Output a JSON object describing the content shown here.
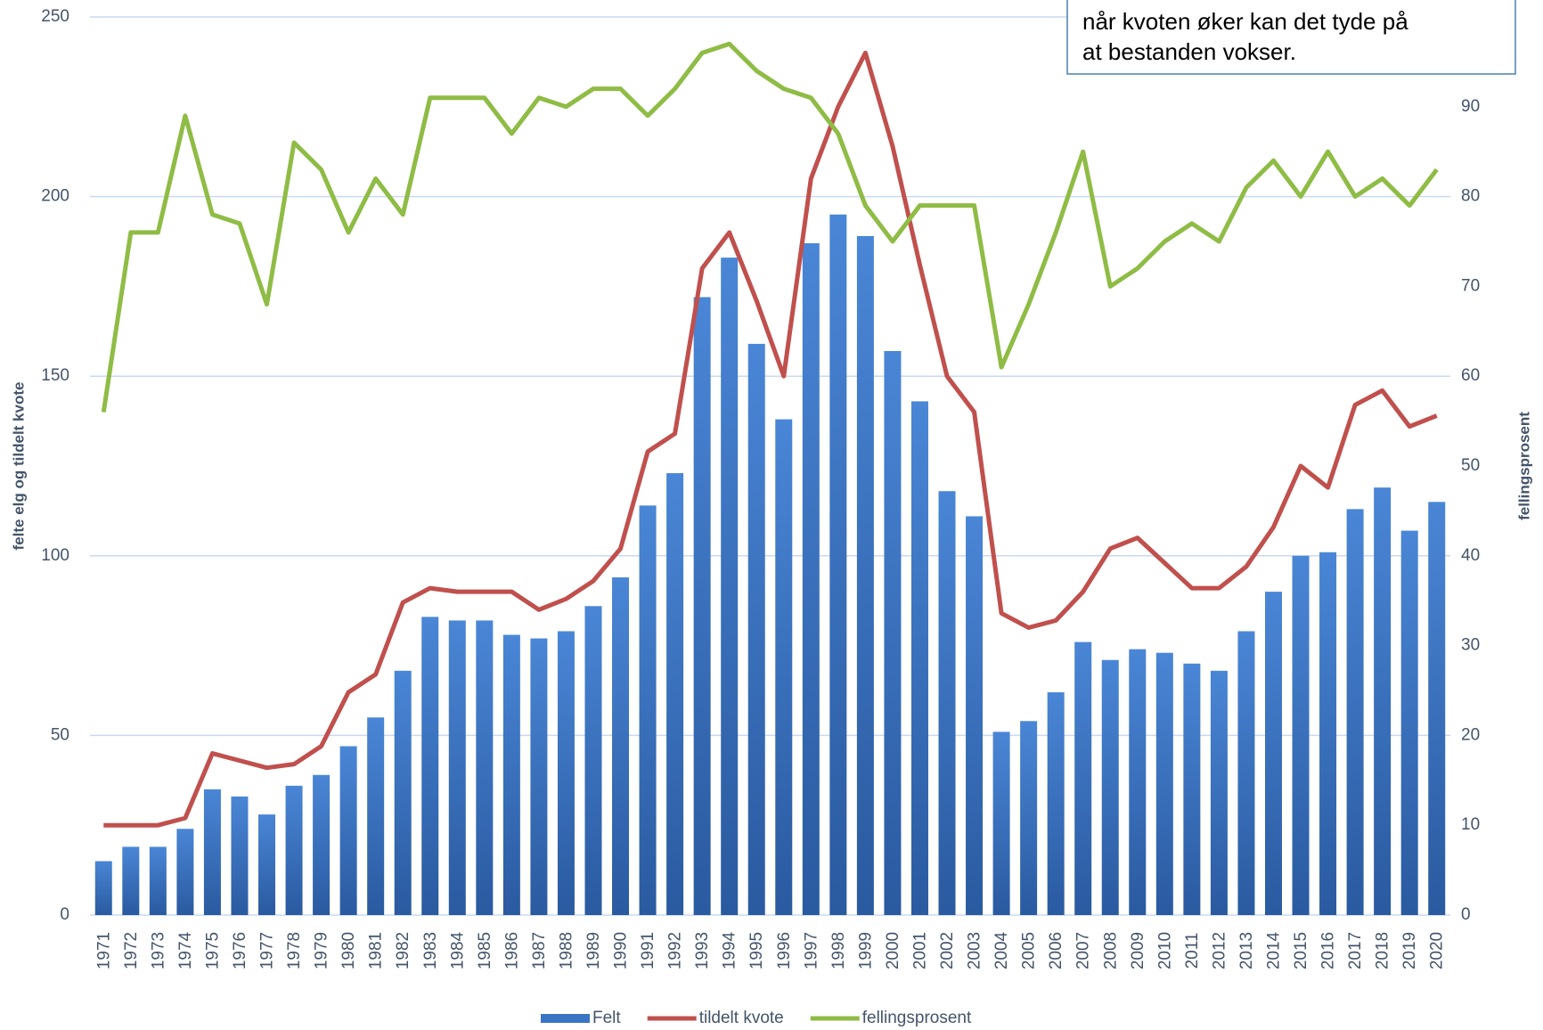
{
  "chart_data": {
    "type": "bar",
    "categories": [
      "1971",
      "1972",
      "1973",
      "1974",
      "1975",
      "1976",
      "1977",
      "1978",
      "1979",
      "1980",
      "1981",
      "1982",
      "1983",
      "1984",
      "1985",
      "1986",
      "1987",
      "1988",
      "1989",
      "1990",
      "1991",
      "1992",
      "1993",
      "1994",
      "1995",
      "1996",
      "1997",
      "1998",
      "1999",
      "2000",
      "2001",
      "2002",
      "2003",
      "2004",
      "2005",
      "2006",
      "2007",
      "2008",
      "2009",
      "2010",
      "2011",
      "2012",
      "2013",
      "2014",
      "2015",
      "2016",
      "2017",
      "2018",
      "2019",
      "2020"
    ],
    "series": [
      {
        "name": "Felt",
        "type": "bar",
        "color": "#3a75c4",
        "values": [
          15,
          19,
          19,
          24,
          35,
          33,
          28,
          36,
          39,
          47,
          55,
          68,
          83,
          82,
          82,
          78,
          77,
          79,
          86,
          94,
          114,
          123,
          172,
          183,
          159,
          138,
          187,
          195,
          189,
          157,
          143,
          118,
          111,
          51,
          54,
          62,
          76,
          71,
          74,
          73,
          70,
          68,
          79,
          90,
          100,
          101,
          113,
          119,
          107,
          115
        ]
      },
      {
        "name": "tildelt kvote",
        "type": "line",
        "color": "#c0504d",
        "values": [
          25,
          25,
          25,
          27,
          45,
          43,
          41,
          42,
          47,
          62,
          67,
          87,
          91,
          90,
          90,
          90,
          85,
          88,
          93,
          102,
          129,
          134,
          180,
          190,
          171,
          150,
          205,
          225,
          240,
          214,
          181,
          150,
          140,
          84,
          80,
          82,
          90,
          102,
          105,
          98,
          91,
          91,
          97,
          108,
          125,
          119,
          142,
          146,
          136,
          139
        ]
      },
      {
        "name": "fellingsprosent",
        "type": "line",
        "axis": "y2",
        "color": "#8fbc45",
        "values": [
          56,
          76,
          76,
          89,
          78,
          77,
          68,
          86,
          83,
          76,
          82,
          78,
          91,
          91,
          91,
          87,
          91,
          90,
          92,
          92,
          89,
          92,
          96,
          97,
          94,
          92,
          91,
          87,
          79,
          75,
          79,
          79,
          79,
          61,
          68,
          76,
          85,
          70,
          72,
          75,
          77,
          75,
          81,
          84,
          80,
          85,
          80,
          82,
          79,
          83
        ]
      }
    ],
    "ylabel": "felte elg og tildelt kvote",
    "y2label": "fellingsprosent",
    "ylim": [
      0,
      250
    ],
    "yticks": [
      0,
      50,
      100,
      150,
      200,
      250
    ],
    "y2lim": [
      0,
      100
    ],
    "y2ticks": [
      0,
      10,
      20,
      30,
      40,
      50,
      60,
      70,
      80,
      90
    ],
    "grid": true,
    "annotation": [
      "når kvoten øker kan det tyde på",
      "at bestanden vokser."
    ]
  }
}
